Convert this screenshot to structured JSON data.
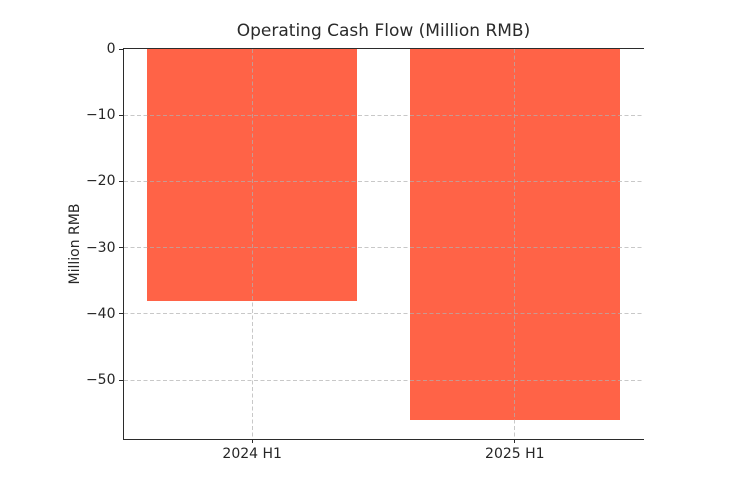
{
  "chart_data": {
    "type": "bar",
    "title": "Operating Cash Flow (Million RMB)",
    "xlabel": "",
    "ylabel": "Million RMB",
    "categories": [
      "2024 H1",
      "2025 H1"
    ],
    "values": [
      -38,
      -56
    ],
    "ylim": [
      -58.8,
      0
    ],
    "yticks": [
      0,
      -10,
      -20,
      -30,
      -40,
      -50
    ],
    "ytick_labels": [
      "0",
      "−10",
      "−20",
      "−30",
      "−40",
      "−50"
    ],
    "bar_color": "#FF6347",
    "bar_width_fraction": 0.8,
    "xlim": [
      -0.49,
      1.49
    ],
    "grid": "dashed",
    "grid_color": "#b0b0b0",
    "grid_alpha": 0.7,
    "axis_color": "#2b2b2b",
    "text_color": "#262626",
    "legend": "none",
    "background": "#ffffff"
  }
}
